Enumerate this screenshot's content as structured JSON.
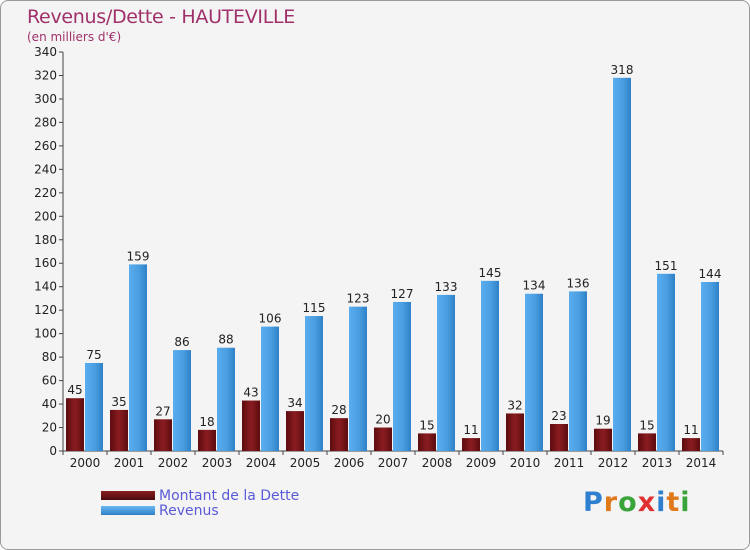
{
  "title": "Revenus/Dette - HAUTEVILLE",
  "subtitle": "(en milliers d'€)",
  "logo": {
    "letters": [
      "P",
      "r",
      "o",
      "x",
      "i",
      "t",
      "i"
    ],
    "colors": [
      "#2f7fd0",
      "#e0781c",
      "#3aa43a",
      "#e03030",
      "#2f7fd0",
      "#e0781c",
      "#3aa43a"
    ]
  },
  "chart_data": {
    "type": "bar",
    "title": "Revenus/Dette - HAUTEVILLE",
    "subtitle": "(en milliers d'€)",
    "categories": [
      "2000",
      "2001",
      "2002",
      "2003",
      "2004",
      "2005",
      "2006",
      "2007",
      "2008",
      "2009",
      "2010",
      "2011",
      "2012",
      "2013",
      "2014"
    ],
    "series": [
      {
        "name": "Montant de la Dette",
        "color": "#7a1418",
        "values": [
          45,
          35,
          27,
          18,
          43,
          34,
          28,
          20,
          15,
          11,
          32,
          23,
          19,
          15,
          11
        ]
      },
      {
        "name": "Revenus",
        "color": "#4a9ee0",
        "values": [
          75,
          159,
          86,
          88,
          106,
          115,
          123,
          127,
          133,
          145,
          134,
          136,
          318,
          151,
          144
        ]
      }
    ],
    "ylim": [
      0,
      340
    ],
    "yticks": [
      0,
      20,
      40,
      60,
      80,
      100,
      120,
      140,
      160,
      180,
      200,
      220,
      240,
      260,
      280,
      300,
      320,
      340
    ],
    "grid": false,
    "legend_position": "bottom-left"
  }
}
